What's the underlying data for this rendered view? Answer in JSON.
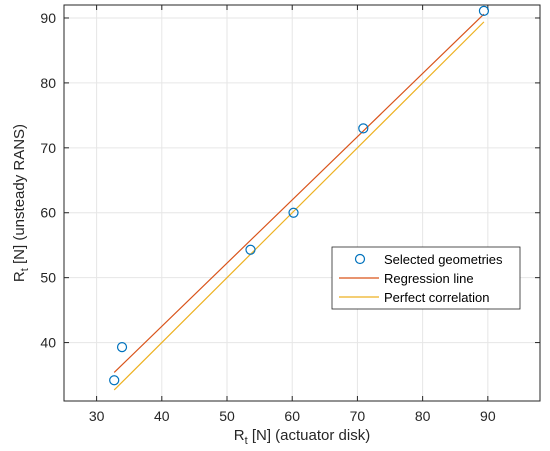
{
  "chart_data": {
    "type": "scatter",
    "title": "",
    "xlabel": {
      "main": "R",
      "sub": "t",
      "rest": " [N] (actuator disk)"
    },
    "ylabel": {
      "main": "R",
      "sub": "t",
      "rest": " [N] (unsteady RANS)"
    },
    "xlim": [
      25,
      98
    ],
    "ylim": [
      31,
      92
    ],
    "xticks": [
      "30",
      "40",
      "50",
      "60",
      "70",
      "80",
      "90"
    ],
    "yticks": [
      "40",
      "50",
      "60",
      "70",
      "80",
      "90"
    ],
    "grid": true,
    "legend_position": "right",
    "series": [
      {
        "name": "Selected geometries",
        "kind": "markers",
        "color": "#0072BD",
        "points": [
          {
            "x": 32.7,
            "y": 34.2
          },
          {
            "x": 33.9,
            "y": 39.3
          },
          {
            "x": 53.6,
            "y": 54.3
          },
          {
            "x": 60.2,
            "y": 60.0
          },
          {
            "x": 70.9,
            "y": 73.0
          },
          {
            "x": 89.4,
            "y": 91.1
          }
        ]
      },
      {
        "name": "Regression line",
        "kind": "line",
        "color": "#D95319",
        "points": [
          {
            "x": 32.7,
            "y": 35.4
          },
          {
            "x": 89.4,
            "y": 90.6
          }
        ]
      },
      {
        "name": "Perfect correlation",
        "kind": "line",
        "color": "#EDB120",
        "points": [
          {
            "x": 32.7,
            "y": 32.7
          },
          {
            "x": 89.4,
            "y": 89.4
          }
        ]
      }
    ]
  }
}
